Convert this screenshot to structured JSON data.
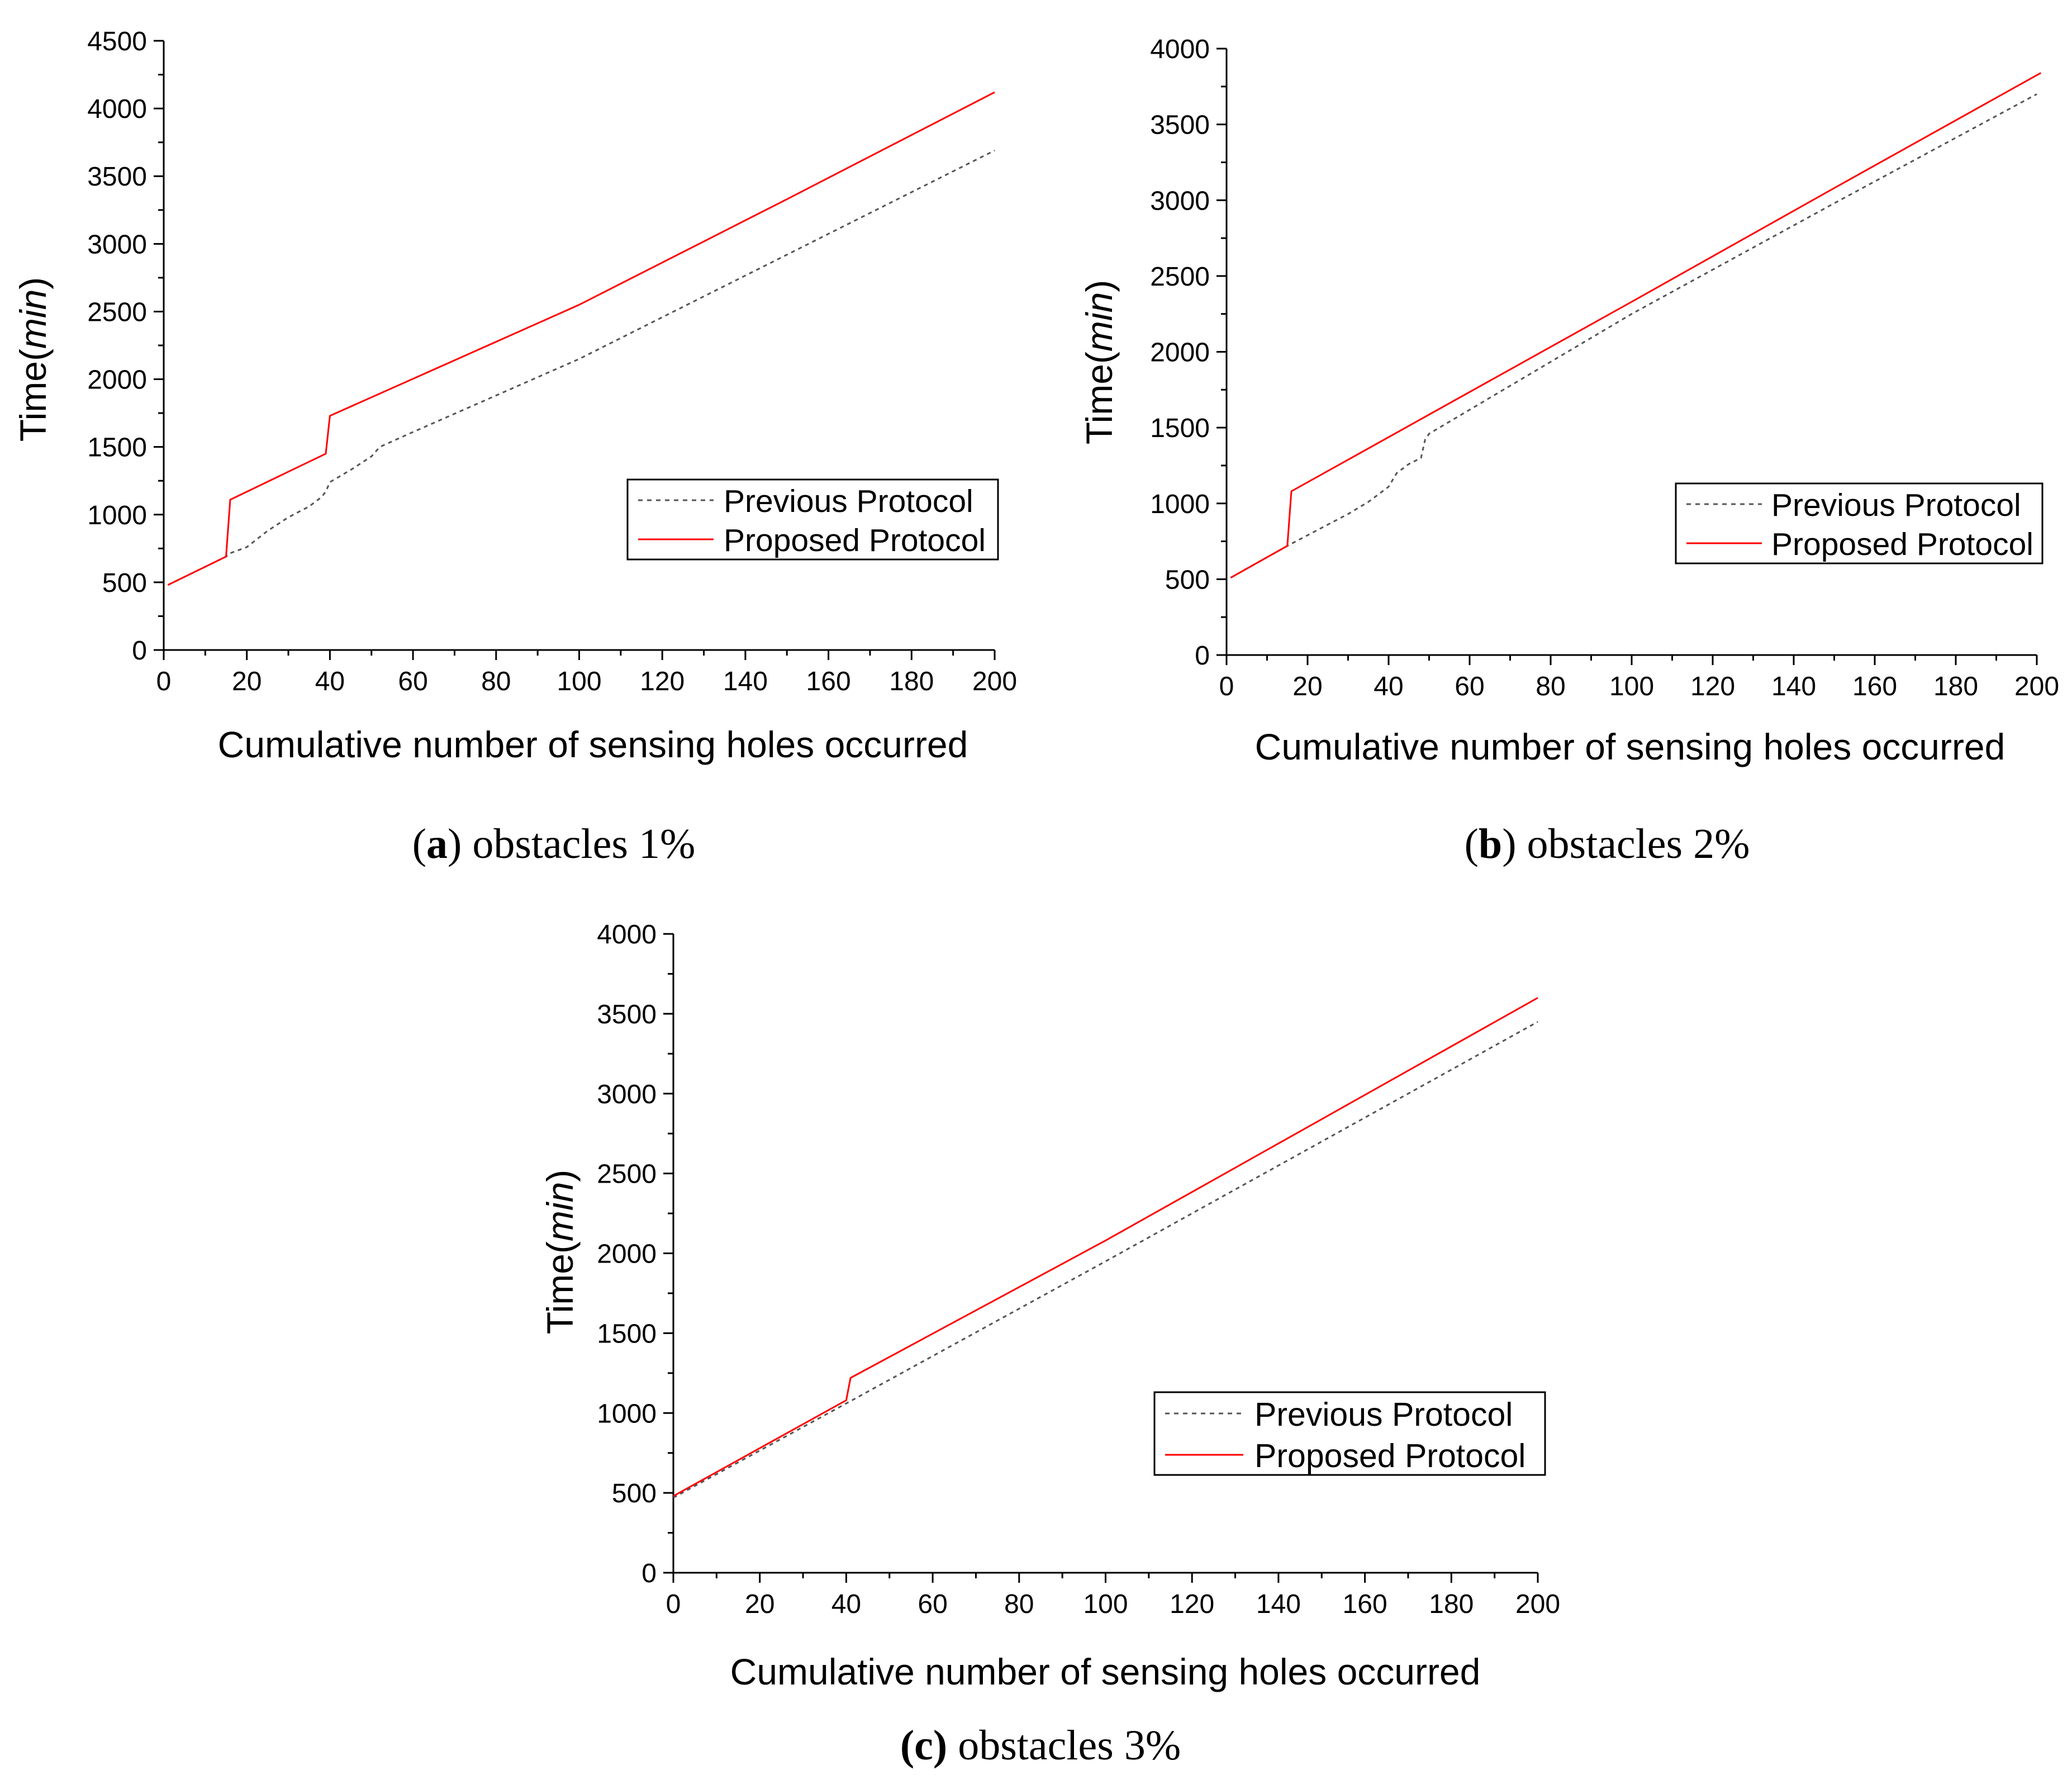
{
  "colors": {
    "previous": "#555555",
    "proposed": "#ff0000",
    "axis": "#000000"
  },
  "chart_data": [
    {
      "id": "a",
      "type": "line",
      "caption": {
        "letter": "a",
        "text": " obstacles 1%"
      },
      "xlabel": "Cumulative number of sensing holes occurred",
      "ylabel_prefix": "Time(",
      "ylabel_italic": "min",
      "ylabel_suffix": ")",
      "xlim": [
        0,
        200
      ],
      "ylim": [
        0,
        4500
      ],
      "xticks": [
        0,
        20,
        40,
        60,
        80,
        100,
        120,
        140,
        160,
        180,
        200
      ],
      "yticks": [
        0,
        500,
        1000,
        1500,
        2000,
        2500,
        3000,
        3500,
        4000,
        4500
      ],
      "legend": {
        "position": "center-right",
        "entries": [
          "Previous Protocol",
          "Proposed Protocol"
        ]
      },
      "series": [
        {
          "name": "Previous Protocol",
          "style": "dashed",
          "x": [
            1,
            15,
            16,
            20,
            25,
            30,
            35,
            38,
            39,
            40,
            45,
            50,
            52,
            60,
            100,
            150,
            200
          ],
          "y": [
            480,
            690,
            715,
            760,
            880,
            980,
            1060,
            1130,
            1170,
            1240,
            1330,
            1430,
            1500,
            1610,
            2150,
            2920,
            3690
          ]
        },
        {
          "name": "Proposed Protocol",
          "style": "solid",
          "x": [
            1,
            15,
            16,
            39,
            40,
            100,
            150,
            200
          ],
          "y": [
            480,
            690,
            1110,
            1450,
            1730,
            2550,
            3330,
            4120
          ]
        }
      ]
    },
    {
      "id": "b",
      "type": "line",
      "caption": {
        "letter": "b",
        "text": " obstacles 2%"
      },
      "xlabel": "Cumulative number of sensing holes occurred",
      "ylabel_prefix": "Time(",
      "ylabel_italic": "min",
      "ylabel_suffix": ")",
      "xlim": [
        0,
        200
      ],
      "ylim": [
        0,
        4000
      ],
      "xticks": [
        0,
        20,
        40,
        60,
        80,
        100,
        120,
        140,
        160,
        180,
        200
      ],
      "yticks": [
        0,
        500,
        1000,
        1500,
        2000,
        2500,
        3000,
        3500,
        4000
      ],
      "legend": {
        "position": "center-right",
        "entries": [
          "Previous Protocol",
          "Proposed Protocol"
        ]
      },
      "series": [
        {
          "name": "Previous Protocol",
          "style": "dashed",
          "x": [
            1,
            15,
            20,
            30,
            35,
            40,
            42,
            45,
            48,
            49,
            50,
            100,
            150,
            200
          ],
          "y": [
            510,
            720,
            790,
            930,
            1010,
            1110,
            1200,
            1260,
            1300,
            1420,
            1460,
            2250,
            2980,
            3700
          ]
        },
        {
          "name": "Proposed Protocol",
          "style": "solid",
          "x": [
            1,
            15,
            16,
            100,
            150,
            201
          ],
          "y": [
            510,
            720,
            1080,
            2330,
            3080,
            3840
          ]
        }
      ]
    },
    {
      "id": "c",
      "type": "line",
      "caption": {
        "letter": "(c)",
        "text": " obstacles 3%"
      },
      "xlabel": "Cumulative number of sensing holes occurred",
      "ylabel_prefix": "Time(",
      "ylabel_italic": "min",
      "ylabel_suffix": ")",
      "xlim": [
        0,
        200
      ],
      "ylim": [
        0,
        4000
      ],
      "xticks": [
        0,
        20,
        40,
        60,
        80,
        100,
        120,
        140,
        160,
        180,
        200
      ],
      "yticks": [
        0,
        500,
        1000,
        1500,
        2000,
        2500,
        3000,
        3500,
        4000
      ],
      "legend": {
        "position": "center-right",
        "entries": [
          "Previous Protocol",
          "Proposed Protocol"
        ]
      },
      "series": [
        {
          "name": "Previous Protocol",
          "style": "dashed",
          "x": [
            0,
            40,
            100,
            150,
            200
          ],
          "y": [
            470,
            1060,
            1950,
            2700,
            3450
          ]
        },
        {
          "name": "Proposed Protocol",
          "style": "solid",
          "x": [
            0,
            40,
            41,
            100,
            150,
            200
          ],
          "y": [
            480,
            1080,
            1220,
            2080,
            2840,
            3600
          ]
        }
      ]
    }
  ]
}
